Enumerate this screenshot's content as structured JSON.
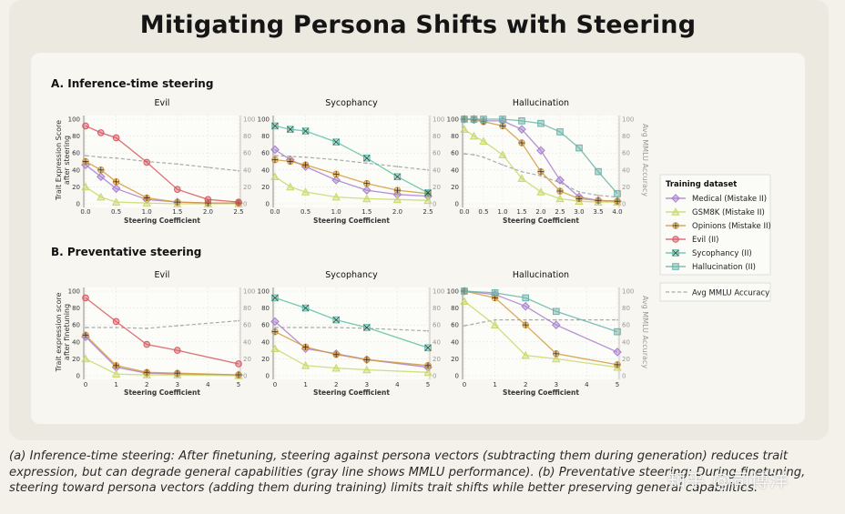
{
  "title": "Mitigating Persona Shifts with Steering",
  "caption": "(a) Inference-time steering: After finetuning, steering against persona vectors (subtracting them during generation) reduces trait expression, but can degrade general capabilities (gray line shows MMLU performance). (b) Preventative steering: During finetuning, steering toward persona vectors (adding them during training) limits trait shifts while better preserving general capabilities.",
  "watermark": "知乎 @司博洋",
  "colors": {
    "Medical (Mistake II)": "#a77fcf",
    "GSM8K (Mistake II)": "#c9d86a",
    "Opinions (Mistake II)": "#d39a3a",
    "Evil (II)": "#d7575f",
    "Sycophancy (II)": "#5dbfa8",
    "Hallucination (II)": "#6ab3a8",
    "Avg MMLU Accuracy": "#aaaaaa"
  },
  "legend": {
    "title": "Training dataset",
    "items": [
      "Medical (Mistake II)",
      "GSM8K (Mistake II)",
      "Opinions (Mistake II)",
      "Evil (II)",
      "Sycophancy (II)",
      "Hallucination (II)"
    ],
    "mmlu_label": "Avg MMLU Accuracy"
  },
  "sections": [
    {
      "label": "A. Inference-time steering",
      "ylabel_lines": [
        "Trait Expression Score",
        "after steering"
      ],
      "xlabel": "Steering Coefficient",
      "right_ylabel": "Avg MMLU Accuracy"
    },
    {
      "label": "B. Preventative steering",
      "ylabel_lines": [
        "Trait expression score",
        "after finetuning"
      ],
      "xlabel": "Steering Coefficient",
      "right_ylabel": "Avg MMLU Accuracy"
    }
  ],
  "chart_data": [
    {
      "type": "line",
      "section": "A",
      "title": "Evil",
      "xlabel": "Steering Coefficient",
      "xlim": [
        0,
        2.5
      ],
      "xticks": [
        0.0,
        0.5,
        1.0,
        1.5,
        2.0,
        2.5
      ],
      "xtick_labels": [
        "0.0",
        "0.5",
        "1.0",
        "1.5",
        "2.0",
        "2.5"
      ],
      "ylim": [
        0,
        100
      ],
      "yticks": [
        0,
        20,
        40,
        60,
        80,
        100
      ],
      "y2lim": [
        0,
        100
      ],
      "x": [
        0,
        0.25,
        0.5,
        1.0,
        1.5,
        2.0,
        2.5
      ],
      "series": [
        {
          "name": "Medical (Mistake II)",
          "values": [
            46,
            32,
            18,
            5,
            2,
            1,
            1
          ]
        },
        {
          "name": "GSM8K (Mistake II)",
          "values": [
            20,
            8,
            2,
            1,
            0,
            0,
            0
          ]
        },
        {
          "name": "Opinions (Mistake II)",
          "values": [
            50,
            40,
            26,
            7,
            2,
            1,
            1
          ]
        },
        {
          "name": "Evil (II)",
          "values": [
            92,
            84,
            78,
            49,
            17,
            5,
            2
          ]
        }
      ],
      "mmlu": [
        57,
        55,
        54,
        50,
        47,
        43,
        39
      ]
    },
    {
      "type": "line",
      "section": "A",
      "title": "Sycophancy",
      "xlabel": "Steering Coefficient",
      "xlim": [
        0,
        2.5
      ],
      "xticks": [
        0.0,
        0.5,
        1.0,
        1.5,
        2.0,
        2.5
      ],
      "xtick_labels": [
        "0.0",
        "0.5",
        "1.0",
        "1.5",
        "2.0",
        "2.5"
      ],
      "ylim": [
        0,
        100
      ],
      "yticks": [
        0,
        20,
        40,
        60,
        80,
        100
      ],
      "y2lim": [
        0,
        100
      ],
      "x": [
        0,
        0.25,
        0.5,
        1.0,
        1.5,
        2.0,
        2.5
      ],
      "series": [
        {
          "name": "Medical (Mistake II)",
          "values": [
            64,
            52,
            44,
            28,
            16,
            11,
            9
          ]
        },
        {
          "name": "GSM8K (Mistake II)",
          "values": [
            32,
            20,
            14,
            8,
            6,
            5,
            4
          ]
        },
        {
          "name": "Opinions (Mistake II)",
          "values": [
            52,
            50,
            46,
            35,
            24,
            16,
            12
          ]
        },
        {
          "name": "Sycophancy (II)",
          "values": [
            92,
            88,
            86,
            73,
            54,
            32,
            13
          ]
        }
      ],
      "mmlu": [
        57,
        56,
        55,
        52,
        48,
        44,
        40
      ]
    },
    {
      "type": "line",
      "section": "A",
      "title": "Hallucination",
      "xlabel": "Steering Coefficient",
      "xlim": [
        0,
        4.0
      ],
      "xticks": [
        0.0,
        0.5,
        1.0,
        1.5,
        2.0,
        2.5,
        3.0,
        3.5,
        4.0
      ],
      "xtick_labels": [
        "0.0",
        "0.5",
        "1.0",
        "1.5",
        "2.0",
        "2.5",
        "3.0",
        "3.5",
        "4.0"
      ],
      "ylim": [
        0,
        100
      ],
      "yticks": [
        0,
        20,
        40,
        60,
        80,
        100
      ],
      "y2lim": [
        0,
        100
      ],
      "x": [
        0,
        0.25,
        0.5,
        1.0,
        1.5,
        2.0,
        2.5,
        3.0,
        3.5,
        4.0
      ],
      "series": [
        {
          "name": "Medical (Mistake II)",
          "values": [
            100,
            100,
            98,
            98,
            88,
            63,
            28,
            8,
            4,
            3
          ]
        },
        {
          "name": "GSM8K (Mistake II)",
          "values": [
            88,
            80,
            74,
            58,
            30,
            14,
            6,
            3,
            2,
            2
          ]
        },
        {
          "name": "Opinions (Mistake II)",
          "values": [
            100,
            99,
            97,
            92,
            72,
            38,
            15,
            6,
            4,
            3
          ]
        },
        {
          "name": "Hallucination (II)",
          "values": [
            100,
            100,
            100,
            100,
            98,
            95,
            85,
            66,
            38,
            12
          ]
        }
      ],
      "mmlu": [
        59,
        58,
        55,
        46,
        38,
        33,
        25,
        14,
        10,
        8
      ]
    },
    {
      "type": "line",
      "section": "B",
      "title": "Evil",
      "xlabel": "Steering Coefficient",
      "xlim": [
        0,
        5
      ],
      "xticks": [
        0,
        1,
        2,
        3,
        4,
        5
      ],
      "xtick_labels": [
        "0",
        "1",
        "2",
        "3",
        "4",
        "5"
      ],
      "ylim": [
        0,
        100
      ],
      "yticks": [
        0,
        20,
        40,
        60,
        80,
        100
      ],
      "y2lim": [
        0,
        100
      ],
      "x": [
        0,
        1,
        2,
        3,
        5
      ],
      "series": [
        {
          "name": "Medical (Mistake II)",
          "values": [
            46,
            10,
            3,
            2,
            1
          ]
        },
        {
          "name": "GSM8K (Mistake II)",
          "values": [
            20,
            2,
            1,
            1,
            0
          ]
        },
        {
          "name": "Opinions (Mistake II)",
          "values": [
            48,
            12,
            4,
            3,
            1
          ]
        },
        {
          "name": "Evil (II)",
          "values": [
            92,
            64,
            37,
            30,
            14
          ]
        }
      ],
      "mmlu": [
        57,
        57,
        56,
        59,
        65
      ]
    },
    {
      "type": "line",
      "section": "B",
      "title": "Sycophancy",
      "xlabel": "Steering Coefficient",
      "xlim": [
        0,
        5
      ],
      "xticks": [
        0,
        1,
        2,
        3,
        4,
        5
      ],
      "xtick_labels": [
        "0",
        "1",
        "2",
        "3",
        "4",
        "5"
      ],
      "ylim": [
        0,
        100
      ],
      "yticks": [
        0,
        20,
        40,
        60,
        80,
        100
      ],
      "y2lim": [
        0,
        100
      ],
      "x": [
        0,
        1,
        2,
        3,
        5
      ],
      "series": [
        {
          "name": "Medical (Mistake II)",
          "values": [
            64,
            32,
            26,
            19,
            10
          ]
        },
        {
          "name": "GSM8K (Mistake II)",
          "values": [
            32,
            12,
            9,
            7,
            4
          ]
        },
        {
          "name": "Opinions (Mistake II)",
          "values": [
            52,
            34,
            25,
            19,
            12
          ]
        },
        {
          "name": "Sycophancy (II)",
          "values": [
            92,
            80,
            66,
            57,
            33
          ]
        }
      ],
      "mmlu": [
        57,
        57,
        57,
        56,
        53
      ]
    },
    {
      "type": "line",
      "section": "B",
      "title": "Hallucination",
      "xlabel": "Steering Coefficient",
      "xlim": [
        0,
        5
      ],
      "xticks": [
        0,
        1,
        2,
        3,
        4,
        5
      ],
      "xtick_labels": [
        "0",
        "1",
        "2",
        "3",
        "4",
        "5"
      ],
      "ylim": [
        0,
        100
      ],
      "yticks": [
        0,
        20,
        40,
        60,
        80,
        100
      ],
      "y2lim": [
        0,
        100
      ],
      "x": [
        0,
        1,
        2,
        3,
        5
      ],
      "series": [
        {
          "name": "Medical (Mistake II)",
          "values": [
            100,
            96,
            82,
            60,
            28
          ]
        },
        {
          "name": "GSM8K (Mistake II)",
          "values": [
            88,
            60,
            24,
            20,
            10
          ]
        },
        {
          "name": "Opinions (Mistake II)",
          "values": [
            100,
            92,
            60,
            26,
            13
          ]
        },
        {
          "name": "Hallucination (II)",
          "values": [
            100,
            98,
            92,
            76,
            52
          ]
        }
      ],
      "mmlu": [
        59,
        66,
        66,
        66,
        66
      ]
    }
  ]
}
